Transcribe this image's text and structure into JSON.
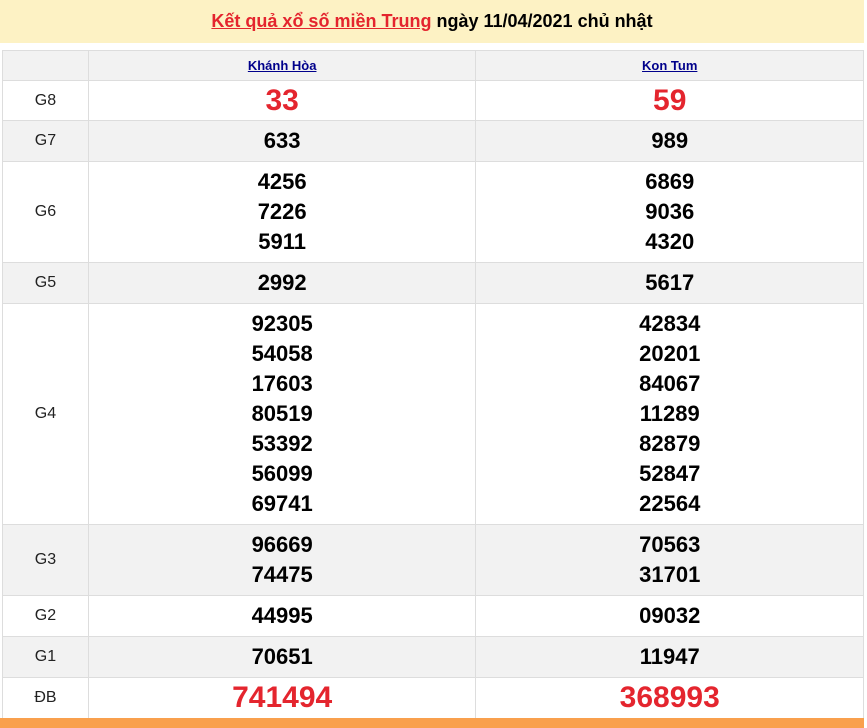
{
  "title": {
    "link": "Kết quả xổ số miền Trung",
    "rest": " ngày 11/04/2021 chủ nhật"
  },
  "provinces": [
    "Khánh Hòa",
    "Kon Tum"
  ],
  "prizes": [
    {
      "label": "G8",
      "values": [
        [
          "33"
        ],
        [
          "59"
        ]
      ],
      "highlight": true
    },
    {
      "label": "G7",
      "values": [
        [
          "633"
        ],
        [
          "989"
        ]
      ]
    },
    {
      "label": "G6",
      "values": [
        [
          "4256",
          "7226",
          "5911"
        ],
        [
          "6869",
          "9036",
          "4320"
        ]
      ]
    },
    {
      "label": "G5",
      "values": [
        [
          "2992"
        ],
        [
          "5617"
        ]
      ]
    },
    {
      "label": "G4",
      "values": [
        [
          "92305",
          "54058",
          "17603",
          "80519",
          "53392",
          "56099",
          "69741"
        ],
        [
          "42834",
          "20201",
          "84067",
          "11289",
          "82879",
          "52847",
          "22564"
        ]
      ]
    },
    {
      "label": "G3",
      "values": [
        [
          "96669",
          "74475"
        ],
        [
          "70563",
          "31701"
        ]
      ]
    },
    {
      "label": "G2",
      "values": [
        [
          "44995"
        ],
        [
          "09032"
        ]
      ]
    },
    {
      "label": "G1",
      "values": [
        [
          "70651"
        ],
        [
          "11947"
        ]
      ]
    },
    {
      "label": "ĐB",
      "values": [
        [
          "741494"
        ],
        [
          "368993"
        ]
      ],
      "highlight": true
    }
  ],
  "colors": {
    "highlight": "#e4252e",
    "title_bg": "#fdf2c4",
    "footer": "#f9a04d"
  }
}
